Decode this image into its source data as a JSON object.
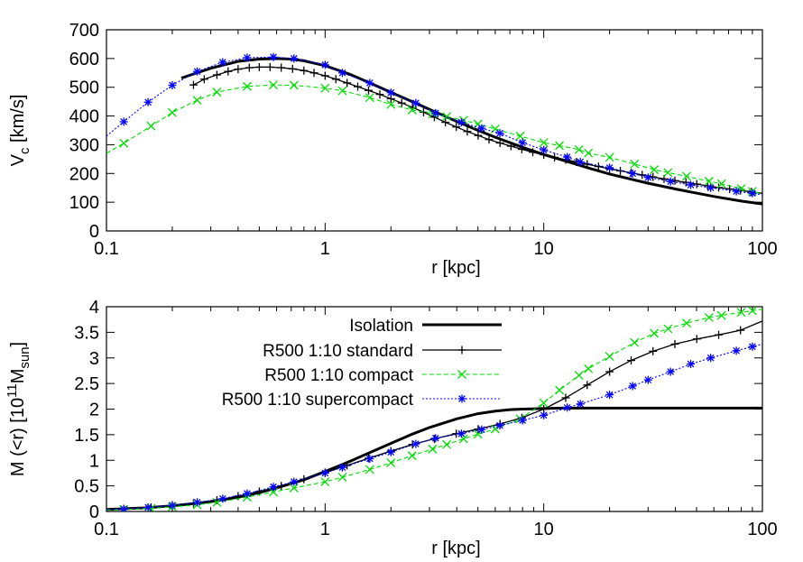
{
  "chart_data": [
    {
      "type": "line",
      "xscale": "log",
      "xlim": [
        0.1,
        100
      ],
      "ylim": [
        0,
        700
      ],
      "xticks": [
        "0.1",
        "1",
        "10",
        "100"
      ],
      "yticks": [
        "0",
        "100",
        "200",
        "300",
        "400",
        "500",
        "600",
        "700"
      ],
      "xlabel": "r [kpc]",
      "ylabel": {
        "main": "V",
        "sub": "c",
        "unit": " [km/s]"
      },
      "grid": false,
      "series": [
        {
          "name": "Isolation",
          "color": "#000000",
          "style": "solid-thick",
          "marker": "none",
          "x": [
            0.22,
            0.3,
            0.4,
            0.5,
            0.6,
            0.7,
            0.8,
            1.0,
            1.3,
            1.6,
            2.0,
            2.5,
            3.0,
            4.0,
            5.0,
            6.0,
            8.0,
            10,
            13,
            16,
            20,
            30,
            40,
            60,
            80,
            100
          ],
          "y": [
            532,
            566,
            590,
            598,
            600,
            598,
            592,
            575,
            545,
            515,
            482,
            450,
            423,
            381,
            350,
            326,
            291,
            266,
            240,
            219,
            198,
            166,
            146,
            120,
            104,
            94
          ]
        },
        {
          "name": "R500 1:10 standard",
          "color": "#000000",
          "style": "solid",
          "marker": "plus",
          "x": [
            0.25,
            0.28,
            0.32,
            0.36,
            0.4,
            0.45,
            0.5,
            0.56,
            0.63,
            0.71,
            0.8,
            0.89,
            1.0,
            1.12,
            1.26,
            1.41,
            1.58,
            1.78,
            2.0,
            2.24,
            2.51,
            2.82,
            3.16,
            3.55,
            3.98,
            4.47,
            5.01,
            5.62,
            6.31,
            7.08,
            7.94,
            8.91,
            10.0,
            11.2,
            12.6,
            14.1,
            15.8,
            17.8,
            20.0,
            22.4,
            25.1,
            28.2,
            31.6,
            35.5,
            39.8,
            44.7,
            50.1,
            56.2,
            63.1,
            70.8,
            79.4,
            89.1,
            100
          ],
          "y": [
            508,
            528,
            543,
            555,
            563,
            568,
            570,
            570,
            568,
            564,
            558,
            550,
            540,
            528,
            515,
            502,
            489,
            475,
            460,
            445,
            430,
            413,
            396,
            378,
            362,
            346,
            332,
            318,
            306,
            295,
            284,
            274,
            265,
            256,
            248,
            240,
            232,
            224,
            216,
            209,
            202,
            195,
            188,
            181,
            175,
            169,
            163,
            157,
            151,
            146,
            141,
            136,
            131
          ]
        },
        {
          "name": "R500 1:10 compact",
          "color": "#00dd00",
          "style": "dashed",
          "marker": "cross",
          "x": [
            0.1,
            0.12,
            0.16,
            0.2,
            0.26,
            0.32,
            0.44,
            0.58,
            0.72,
            1.0,
            1.2,
            1.6,
            2.0,
            2.5,
            3.1,
            3.6,
            4.3,
            5.0,
            6.0,
            7.8,
            10.0,
            11.8,
            14.5,
            16.0,
            20.0,
            26.0,
            32.0,
            37.0,
            45.0,
            57.0,
            65.0,
            80.0,
            90.0,
            100
          ],
          "y": [
            270,
            305,
            365,
            412,
            455,
            483,
            503,
            508,
            507,
            497,
            488,
            464,
            440,
            421,
            408,
            398,
            385,
            372,
            355,
            330,
            307,
            297,
            283,
            271,
            256,
            233,
            213,
            203,
            190,
            173,
            164,
            147,
            138,
            128
          ]
        },
        {
          "name": "R500 1:10 supercompact",
          "color": "#0000ff",
          "style": "dotted",
          "marker": "star",
          "x": [
            0.1,
            0.12,
            0.155,
            0.2,
            0.26,
            0.34,
            0.44,
            0.58,
            0.72,
            1.0,
            1.2,
            1.6,
            2.0,
            2.6,
            3.2,
            4.2,
            5.2,
            6.3,
            8.0,
            10.0,
            12.8,
            14.7,
            20.0,
            25.5,
            30.0,
            38.0,
            47.0,
            58.0,
            76.0,
            90.0,
            100
          ],
          "y": [
            330,
            380,
            448,
            507,
            555,
            587,
            603,
            605,
            600,
            578,
            550,
            515,
            481,
            445,
            410,
            378,
            357,
            340,
            307,
            282,
            257,
            240,
            220,
            200,
            186,
            172,
            160,
            150,
            138,
            131,
            126
          ]
        }
      ]
    },
    {
      "type": "line",
      "xscale": "log",
      "xlim": [
        0.1,
        100
      ],
      "ylim": [
        0,
        4
      ],
      "xticks": [
        "0.1",
        "1",
        "10",
        "100"
      ],
      "yticks": [
        "0",
        "0.5",
        "1",
        "1.5",
        "2",
        "2.5",
        "3",
        "3.5",
        "4"
      ],
      "xlabel": "r [kpc]",
      "ylabel": {
        "main": "M (<r) [10",
        "sup": "11",
        "mid": "M",
        "sub": "sun",
        "unit": "]"
      },
      "grid": false,
      "legend": {
        "position": "top-left",
        "entries": [
          "Isolation",
          "R500 1:10 standard",
          "R500 1:10 compact",
          "R500 1:10 supercompact"
        ]
      },
      "series": [
        {
          "name": "Isolation",
          "color": "#000000",
          "style": "solid-thick",
          "marker": "none",
          "x": [
            0.1,
            0.15,
            0.2,
            0.3,
            0.4,
            0.5,
            0.6,
            0.8,
            1.0,
            1.3,
            1.6,
            2.0,
            2.5,
            3.0,
            4.0,
            5.0,
            6.0,
            7.0,
            8.0,
            10,
            12,
            15,
            20,
            30,
            50,
            100
          ],
          "y": [
            0.04,
            0.07,
            0.11,
            0.19,
            0.28,
            0.37,
            0.46,
            0.62,
            0.78,
            0.98,
            1.15,
            1.33,
            1.51,
            1.64,
            1.81,
            1.91,
            1.96,
            1.99,
            2.0,
            2.01,
            2.02,
            2.02,
            2.02,
            2.02,
            2.02,
            2.02
          ]
        },
        {
          "name": "R500 1:10 standard",
          "color": "#000000",
          "style": "solid",
          "marker": "plus",
          "x": [
            0.1,
            0.12,
            0.16,
            0.2,
            0.25,
            0.32,
            0.4,
            0.5,
            0.63,
            0.8,
            1.0,
            1.26,
            1.58,
            2.0,
            2.51,
            3.16,
            3.98,
            5.01,
            6.31,
            7.94,
            10.0,
            12.6,
            15.8,
            20.0,
            25.1,
            31.6,
            39.8,
            50.1,
            63.1,
            79.4,
            100
          ],
          "y": [
            0.04,
            0.05,
            0.08,
            0.12,
            0.16,
            0.22,
            0.3,
            0.39,
            0.5,
            0.63,
            0.76,
            0.9,
            1.04,
            1.18,
            1.31,
            1.42,
            1.52,
            1.61,
            1.71,
            1.83,
            2.0,
            2.22,
            2.47,
            2.73,
            2.95,
            3.13,
            3.27,
            3.37,
            3.45,
            3.54,
            3.72
          ]
        },
        {
          "name": "R500 1:10 compact",
          "color": "#00dd00",
          "style": "dashed",
          "marker": "cross",
          "x": [
            0.1,
            0.12,
            0.16,
            0.2,
            0.26,
            0.32,
            0.44,
            0.58,
            0.72,
            1.0,
            1.2,
            1.6,
            2.0,
            2.5,
            3.1,
            3.6,
            4.3,
            5.0,
            6.0,
            7.8,
            10.0,
            11.8,
            14.5,
            16.0,
            20.0,
            26.0,
            32.0,
            37.0,
            45.0,
            57.0,
            65.0,
            80.0,
            90.0,
            100
          ],
          "y": [
            0.03,
            0.04,
            0.06,
            0.09,
            0.13,
            0.18,
            0.28,
            0.38,
            0.46,
            0.58,
            0.67,
            0.82,
            0.95,
            1.09,
            1.22,
            1.31,
            1.42,
            1.51,
            1.61,
            1.81,
            2.12,
            2.37,
            2.66,
            2.79,
            3.03,
            3.3,
            3.48,
            3.57,
            3.68,
            3.79,
            3.83,
            3.89,
            3.92,
            3.95
          ]
        },
        {
          "name": "R500 1:10 supercompact",
          "color": "#0000ff",
          "style": "dotted",
          "marker": "star",
          "x": [
            0.1,
            0.12,
            0.155,
            0.2,
            0.26,
            0.34,
            0.44,
            0.58,
            0.72,
            1.0,
            1.2,
            1.6,
            2.0,
            2.6,
            3.2,
            4.2,
            5.2,
            6.3,
            8.0,
            10.0,
            12.8,
            14.7,
            20.0,
            25.5,
            30.0,
            38.0,
            47.0,
            58.0,
            76.0,
            90.0,
            100
          ],
          "y": [
            0.04,
            0.05,
            0.08,
            0.12,
            0.18,
            0.25,
            0.35,
            0.48,
            0.58,
            0.75,
            0.86,
            1.03,
            1.16,
            1.32,
            1.43,
            1.52,
            1.6,
            1.68,
            1.78,
            1.88,
            2.03,
            2.1,
            2.28,
            2.45,
            2.57,
            2.73,
            2.88,
            3.0,
            3.14,
            3.22,
            3.27
          ]
        }
      ]
    }
  ]
}
